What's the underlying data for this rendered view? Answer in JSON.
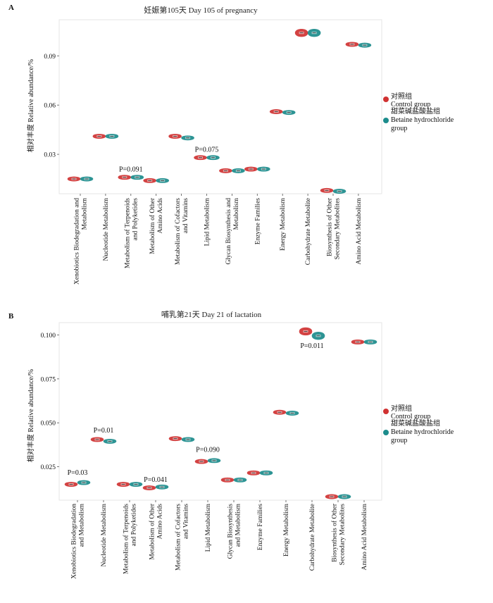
{
  "colors": {
    "control": "#d03232",
    "betaine": "#1c8c8c"
  },
  "legend": {
    "control_cn": "对照组",
    "control_en": "Control group",
    "betaine_cn": "甜菜碱盐酸盐组",
    "betaine_en_1": "Betaine hydrochloride",
    "betaine_en_2": "group"
  },
  "chart_data": [
    {
      "type": "violin",
      "panel_label": "A",
      "title": "妊娠第105天 Day 105 of pregnancy",
      "ylabel": "相对丰度 Relative abundance/%",
      "ylim": [
        0.006,
        0.112
      ],
      "yticks": [
        "0.03",
        "0.06",
        "0.09"
      ],
      "categories": [
        [
          "Xenobiotics Biodegradation and",
          "Metabolism"
        ],
        [
          "Nucleotide Metabolism"
        ],
        [
          "Metabolism of Terpenoids",
          "and Polyketides"
        ],
        [
          "Metabolism of Other",
          "Amino Acids"
        ],
        [
          "Metabolism of Cofactors",
          "and Vitamins"
        ],
        [
          "Lipid Metabolism"
        ],
        [
          "Glycan Biosynthesis and",
          "Metabolism"
        ],
        [
          "Enzyme Families"
        ],
        [
          "Energy Metabolism"
        ],
        [
          "Carbohydrate Metabolite"
        ],
        [
          "Biosynthesis of Other",
          "Secondary Metabolites"
        ],
        [
          "Amino Acid Metabolism"
        ]
      ],
      "series": [
        {
          "name": "对照组 Control group",
          "values": [
            0.015,
            0.041,
            0.016,
            0.014,
            0.041,
            0.028,
            0.02,
            0.021,
            0.056,
            0.104,
            0.008,
            0.097
          ]
        },
        {
          "name": "甜菜碱盐酸盐组 Betaine hydrochloride group",
          "values": [
            0.015,
            0.041,
            0.016,
            0.014,
            0.04,
            0.028,
            0.02,
            0.021,
            0.0555,
            0.104,
            0.0075,
            0.0965
          ]
        }
      ],
      "annotations": [
        {
          "category": 2,
          "text": "P=0.091",
          "y": 0.0195
        },
        {
          "category": 5,
          "text": "P=0.075",
          "y": 0.0315
        }
      ]
    },
    {
      "type": "violin",
      "panel_label": "B",
      "title": "哺乳第21天 Day 21 of lactation",
      "ylabel": "相对丰度 Relative abundance/%",
      "ylim": [
        0.006,
        0.107
      ],
      "yticks": [
        "0.025",
        "0.050",
        "0.075",
        "0.100"
      ],
      "categories": [
        [
          "Xenobiotics Biodegradation",
          "and Metabolism"
        ],
        [
          "Nucleotide Metabolism"
        ],
        [
          "Metabolism of Terpenoids",
          "and Polyketides"
        ],
        [
          "Metabolism of Other",
          "Amino Acids"
        ],
        [
          "Metabolism of Cofactors",
          "and Vitamins"
        ],
        [
          "Lipid Metabolism"
        ],
        [
          "Glycan Biosynthesis",
          "and Metabolism"
        ],
        [
          "Enzyme Families"
        ],
        [
          "Energy Metabolism"
        ],
        [
          "Carbohydrate Metabolite"
        ],
        [
          "Biosynthesis of Other",
          "Secondary Metabolites"
        ],
        [
          "Amino Acid Metabolism"
        ]
      ],
      "series": [
        {
          "name": "对照组 Control group",
          "values": [
            0.015,
            0.0405,
            0.015,
            0.013,
            0.041,
            0.028,
            0.0175,
            0.0215,
            0.056,
            0.102,
            0.008,
            0.096
          ]
        },
        {
          "name": "甜菜碱盐酸盐组 Betaine hydrochloride group",
          "values": [
            0.016,
            0.0395,
            0.015,
            0.0135,
            0.0405,
            0.0285,
            0.0175,
            0.0215,
            0.0555,
            0.0995,
            0.008,
            0.096
          ]
        }
      ],
      "annotations": [
        {
          "category": 0,
          "text": "P=0.03",
          "y": 0.0205
        },
        {
          "category": 1,
          "text": "P=0.01",
          "y": 0.0445
        },
        {
          "category": 3,
          "text": "P=0.041",
          "y": 0.0165
        },
        {
          "category": 5,
          "text": "P=0.090",
          "y": 0.0335
        },
        {
          "category": 9,
          "text": "P=0.011",
          "y": 0.0925
        }
      ]
    }
  ]
}
